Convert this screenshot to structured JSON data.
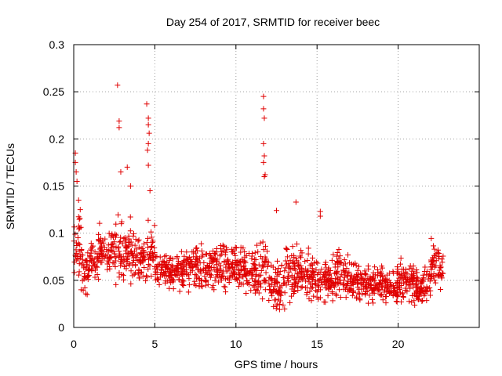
{
  "chart_data": {
    "type": "scatter",
    "title": "Day 254 of 2017, SRMTID for receiver beec",
    "xlabel": "GPS time / hours",
    "ylabel": "SRMTID / TECUs",
    "xlim": [
      0,
      25
    ],
    "ylim": [
      0,
      0.3
    ],
    "grid": true,
    "marker": "+",
    "color": "#e00000",
    "x_ticks": [
      0,
      5,
      10,
      15,
      20
    ],
    "x_tick_labels": [
      "0",
      "5",
      "10",
      "15",
      "20"
    ],
    "y_ticks": [
      0,
      0.05,
      0.1,
      0.15,
      0.2,
      0.25,
      0.3
    ],
    "y_tick_labels": [
      "0",
      "0.05",
      "0.1",
      "0.15",
      "0.2",
      "0.25",
      "0.3"
    ],
    "note": "Approximately 1800 dense points; envelope described by time-window bands (hour_start, hour_end, typical_min, typical_max) plus notable spike points.",
    "series": [
      {
        "name": "SRMTID",
        "bands": [
          [
            0.0,
            0.5,
            0.03,
            0.13
          ],
          [
            0.5,
            1.0,
            0.03,
            0.09
          ],
          [
            1.0,
            1.5,
            0.04,
            0.1
          ],
          [
            1.5,
            2.5,
            0.04,
            0.12
          ],
          [
            2.5,
            3.5,
            0.03,
            0.13
          ],
          [
            3.5,
            4.5,
            0.04,
            0.11
          ],
          [
            4.5,
            5.0,
            0.04,
            0.12
          ],
          [
            5.0,
            6.0,
            0.03,
            0.09
          ],
          [
            6.0,
            7.0,
            0.03,
            0.09
          ],
          [
            7.0,
            8.0,
            0.03,
            0.1
          ],
          [
            8.0,
            9.0,
            0.03,
            0.1
          ],
          [
            9.0,
            10.0,
            0.03,
            0.1
          ],
          [
            10.0,
            11.0,
            0.03,
            0.09
          ],
          [
            11.0,
            12.0,
            0.02,
            0.1
          ],
          [
            12.0,
            13.0,
            0.01,
            0.08
          ],
          [
            13.0,
            14.0,
            0.02,
            0.1
          ],
          [
            14.0,
            15.0,
            0.02,
            0.09
          ],
          [
            15.0,
            16.0,
            0.02,
            0.08
          ],
          [
            16.0,
            17.0,
            0.02,
            0.09
          ],
          [
            17.0,
            18.0,
            0.02,
            0.08
          ],
          [
            18.0,
            19.0,
            0.02,
            0.07
          ],
          [
            19.0,
            20.0,
            0.02,
            0.07
          ],
          [
            20.0,
            21.0,
            0.02,
            0.08
          ],
          [
            21.0,
            22.0,
            0.02,
            0.07
          ],
          [
            22.0,
            22.8,
            0.03,
            0.1
          ]
        ],
        "spikes": [
          [
            0.1,
            0.185
          ],
          [
            0.1,
            0.175
          ],
          [
            0.15,
            0.165
          ],
          [
            0.2,
            0.155
          ],
          [
            0.3,
            0.135
          ],
          [
            0.4,
            0.125
          ],
          [
            2.7,
            0.257
          ],
          [
            2.8,
            0.219
          ],
          [
            2.8,
            0.212
          ],
          [
            2.9,
            0.165
          ],
          [
            3.3,
            0.17
          ],
          [
            3.5,
            0.15
          ],
          [
            4.5,
            0.237
          ],
          [
            4.6,
            0.222
          ],
          [
            4.6,
            0.215
          ],
          [
            4.65,
            0.206
          ],
          [
            4.6,
            0.195
          ],
          [
            4.55,
            0.188
          ],
          [
            4.6,
            0.172
          ],
          [
            4.7,
            0.145
          ],
          [
            11.7,
            0.245
          ],
          [
            11.7,
            0.232
          ],
          [
            11.75,
            0.222
          ],
          [
            11.7,
            0.195
          ],
          [
            11.75,
            0.182
          ],
          [
            11.7,
            0.175
          ],
          [
            11.8,
            0.162
          ],
          [
            11.75,
            0.16
          ],
          [
            13.7,
            0.133
          ],
          [
            15.2,
            0.123
          ],
          [
            15.2,
            0.118
          ],
          [
            12.5,
            0.124
          ]
        ]
      }
    ]
  }
}
